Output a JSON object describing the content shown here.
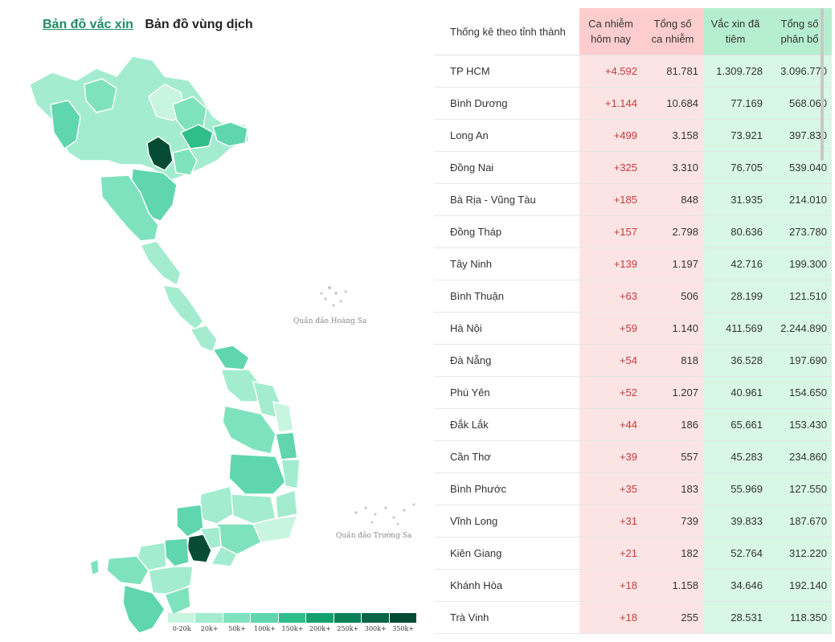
{
  "tabs": {
    "vaccine_map": "Bản đồ vắc xin",
    "epidemic_map": "Bản đồ vùng dịch"
  },
  "legend": {
    "labels": [
      "0-20k",
      "20k+",
      "50k+",
      "100k+",
      "150k+",
      "200k+",
      "250k+",
      "300k+",
      "350k+"
    ]
  },
  "islands": {
    "hoang_sa": "Quần đảo Hoàng Sa",
    "truong_sa": "Quần đảo Trường Sa"
  },
  "table": {
    "headers": {
      "province": "Thống kê theo tỉnh thành",
      "new_cases": "Ca nhiễm hôm nay",
      "total_cases": "Tổng số ca nhiễm",
      "vaccinated": "Vắc xin đã tiêm",
      "distributed": "Tổng số phân bổ"
    },
    "rows": [
      {
        "province": "TP HCM",
        "new_cases": "+4.592",
        "total_cases": "81.781",
        "vaccinated": "1.309.728",
        "distributed": "3.096.770"
      },
      {
        "province": "Bình Dương",
        "new_cases": "+1.144",
        "total_cases": "10.684",
        "vaccinated": "77.169",
        "distributed": "568.060"
      },
      {
        "province": "Long An",
        "new_cases": "+499",
        "total_cases": "3.158",
        "vaccinated": "73.921",
        "distributed": "397.830"
      },
      {
        "province": "Đồng Nai",
        "new_cases": "+325",
        "total_cases": "3.310",
        "vaccinated": "76.705",
        "distributed": "539.040"
      },
      {
        "province": "Bà Rịa - Vũng Tàu",
        "new_cases": "+185",
        "total_cases": "848",
        "vaccinated": "31.935",
        "distributed": "214.010"
      },
      {
        "province": "Đồng Tháp",
        "new_cases": "+157",
        "total_cases": "2.798",
        "vaccinated": "80.636",
        "distributed": "273.780"
      },
      {
        "province": "Tây Ninh",
        "new_cases": "+139",
        "total_cases": "1.197",
        "vaccinated": "42.716",
        "distributed": "199.300"
      },
      {
        "province": "Bình Thuận",
        "new_cases": "+63",
        "total_cases": "506",
        "vaccinated": "28.199",
        "distributed": "121.510"
      },
      {
        "province": "Hà Nội",
        "new_cases": "+59",
        "total_cases": "1.140",
        "vaccinated": "411.569",
        "distributed": "2.244.890"
      },
      {
        "province": "Đà Nẵng",
        "new_cases": "+54",
        "total_cases": "818",
        "vaccinated": "36.528",
        "distributed": "197.690"
      },
      {
        "province": "Phú Yên",
        "new_cases": "+52",
        "total_cases": "1.207",
        "vaccinated": "40.961",
        "distributed": "154.650"
      },
      {
        "province": "Đắk Lắk",
        "new_cases": "+44",
        "total_cases": "186",
        "vaccinated": "65.661",
        "distributed": "153.430"
      },
      {
        "province": "Cần Thơ",
        "new_cases": "+39",
        "total_cases": "557",
        "vaccinated": "45.283",
        "distributed": "234.860"
      },
      {
        "province": "Bình Phước",
        "new_cases": "+35",
        "total_cases": "183",
        "vaccinated": "55.969",
        "distributed": "127.550"
      },
      {
        "province": "Vĩnh Long",
        "new_cases": "+31",
        "total_cases": "739",
        "vaccinated": "39.833",
        "distributed": "187.670"
      },
      {
        "province": "Kiên Giang",
        "new_cases": "+21",
        "total_cases": "182",
        "vaccinated": "52.764",
        "distributed": "312.220"
      },
      {
        "province": "Khánh Hòa",
        "new_cases": "+18",
        "total_cases": "1.158",
        "vaccinated": "34.646",
        "distributed": "192.140"
      },
      {
        "province": "Trà Vinh",
        "new_cases": "+18",
        "total_cases": "255",
        "vaccinated": "28.531",
        "distributed": "118.350"
      }
    ]
  },
  "colors": {
    "legend": [
      "#c8f5e0",
      "#a3ecd0",
      "#7fe2bf",
      "#5fd6ae",
      "#2fbd8b",
      "#14a06e",
      "#0c8258",
      "#0a6647",
      "#064c34"
    ],
    "link": "#1f8a63",
    "case_bg": "#fde4e4",
    "vac_bg": "#d8f7e6"
  }
}
